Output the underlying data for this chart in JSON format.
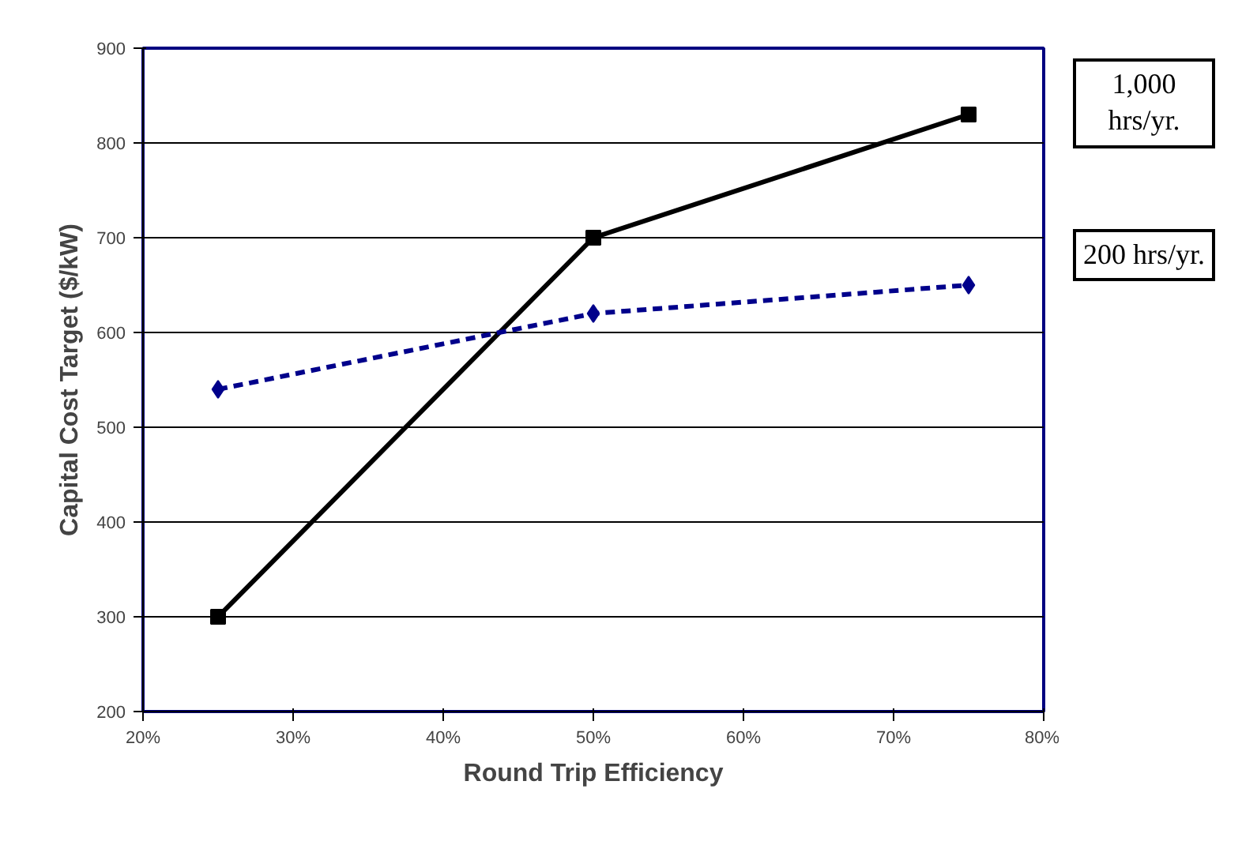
{
  "chart_data": {
    "type": "line",
    "xlabel": "Round Trip Efficiency",
    "ylabel": "Capital Cost Target ($/kW)",
    "x": [
      25,
      50,
      75
    ],
    "series": [
      {
        "name": "1,000 hrs/yr.",
        "color": "#000000",
        "values": [
          300,
          700,
          830
        ],
        "marker": "square",
        "line_style": "solid"
      },
      {
        "name": "200 hrs/yr.",
        "color": "#00008b",
        "values": [
          540,
          620,
          650
        ],
        "marker": "diamond",
        "line_style": "dashed"
      }
    ],
    "xlim": [
      20,
      80
    ],
    "xticks": [
      {
        "value": 20,
        "label": "20%"
      },
      {
        "value": 30,
        "label": "30%"
      },
      {
        "value": 40,
        "label": "40%"
      },
      {
        "value": 50,
        "label": "50%"
      },
      {
        "value": 60,
        "label": "60%"
      },
      {
        "value": 70,
        "label": "70%"
      },
      {
        "value": 80,
        "label": "80%"
      }
    ],
    "ylim": [
      200,
      900
    ],
    "yticks": [
      200,
      300,
      400,
      500,
      600,
      700,
      800,
      900
    ],
    "grid": "y",
    "legend": "right"
  }
}
